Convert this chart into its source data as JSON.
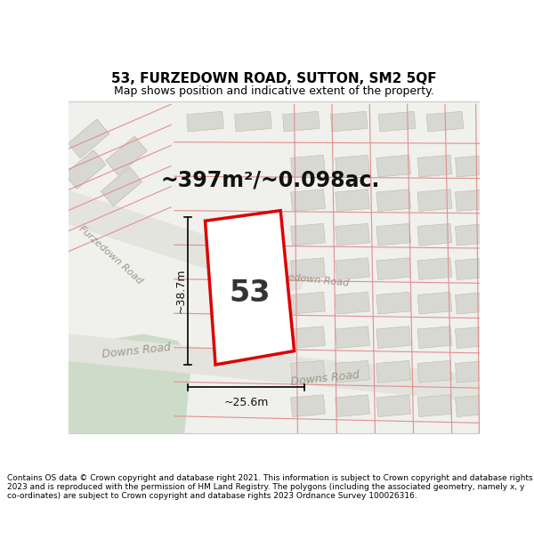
{
  "title": "53, FURZEDOWN ROAD, SUTTON, SM2 5QF",
  "subtitle": "Map shows position and indicative extent of the property.",
  "footer": "Contains OS data © Crown copyright and database right 2021. This information is subject to Crown copyright and database rights 2023 and is reproduced with the permission of HM Land Registry. The polygons (including the associated geometry, namely x, y co-ordinates) are subject to Crown copyright and database rights 2023 Ordnance Survey 100026316.",
  "area_label": "~397m²/~0.098ac.",
  "width_label": "~25.6m",
  "height_label": "~38.7m",
  "house_number": "53",
  "bg_color": "#f0f0ec",
  "road_fill_color": "#e4e4de",
  "plot_outline_color": "#dd0000",
  "block_fill": "#d8d8d2",
  "block_edge": "#bbbbaa",
  "green_color": "#ccdcc8",
  "red_line_color": "#e09090",
  "title_fontsize": 11,
  "subtitle_fontsize": 9,
  "footer_fontsize": 6.5
}
